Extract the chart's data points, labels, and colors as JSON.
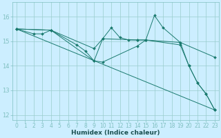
{
  "xlabel": "Humidex (Indice chaleur)",
  "bg_color": "#cceeff",
  "grid_color": "#99cccc",
  "line_color": "#1a7a6e",
  "xlim": [
    -0.5,
    23.5
  ],
  "ylim": [
    11.8,
    16.6
  ],
  "yticks": [
    12,
    13,
    14,
    15,
    16
  ],
  "xticks": [
    0,
    1,
    2,
    3,
    4,
    5,
    6,
    7,
    8,
    9,
    10,
    11,
    12,
    13,
    14,
    15,
    16,
    17,
    18,
    19,
    20,
    21,
    22,
    23
  ],
  "series": [
    {
      "x": [
        0,
        2,
        3,
        4,
        9,
        10,
        11,
        12,
        13,
        14,
        15,
        16,
        17,
        19,
        20,
        21,
        22,
        23
      ],
      "y": [
        15.5,
        15.3,
        15.3,
        15.45,
        14.2,
        15.1,
        15.55,
        15.15,
        15.05,
        15.05,
        15.05,
        16.05,
        15.55,
        14.95,
        14.0,
        13.3,
        12.85,
        12.2
      ]
    },
    {
      "x": [
        0,
        23
      ],
      "y": [
        15.5,
        12.2
      ]
    },
    {
      "x": [
        0,
        4,
        9,
        10,
        14,
        15,
        19,
        23
      ],
      "y": [
        15.5,
        15.45,
        14.7,
        15.1,
        15.05,
        15.05,
        14.95,
        14.35
      ]
    },
    {
      "x": [
        0,
        4,
        7,
        8,
        9,
        10,
        14,
        15,
        19,
        20,
        21,
        22,
        23
      ],
      "y": [
        15.5,
        15.45,
        14.85,
        14.6,
        14.2,
        14.15,
        14.8,
        15.05,
        14.85,
        14.0,
        13.3,
        12.85,
        12.2
      ]
    }
  ]
}
